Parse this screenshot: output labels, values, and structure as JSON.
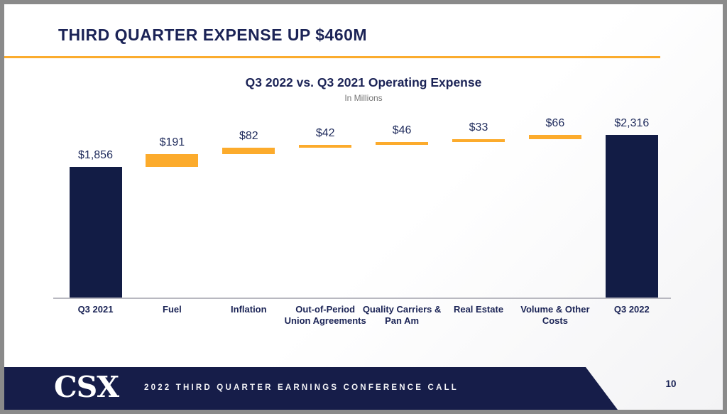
{
  "slide": {
    "title": "THIRD QUARTER EXPENSE UP $460M",
    "page_number": "10"
  },
  "footer": {
    "logo_text": "CSX",
    "text": "2022 THIRD QUARTER EARNINGS CONFERENCE CALL"
  },
  "chart_data": {
    "type": "bar",
    "subtype": "waterfall",
    "title": "Q3 2022 vs. Q3 2021 Operating Expense",
    "subtitle": "In Millions",
    "categories": [
      "Q3 2021",
      "Fuel",
      "Inflation",
      "Out-of-Period Union Agreements",
      "Quality Carriers & Pan Am",
      "Real Estate",
      "Volume & Other Costs",
      "Q3 2022"
    ],
    "values": [
      1856,
      191,
      82,
      42,
      46,
      33,
      66,
      2316
    ],
    "labels": [
      "$1,856",
      "$191",
      "$82",
      "$42",
      "$46",
      "$33",
      "$66",
      "$2,316"
    ],
    "bar_types": [
      "total",
      "delta",
      "delta",
      "delta",
      "delta",
      "delta",
      "delta",
      "total"
    ],
    "colors": {
      "total": "#121c45",
      "delta": "#fcab2c"
    },
    "ylim": [
      0,
      2400
    ],
    "grid": false,
    "legend": "none",
    "axis_labels_position": "below-baseline"
  },
  "colors": {
    "title_navy": "#1b2356",
    "bar_navy": "#121c45",
    "bar_orange": "#fcab2c",
    "divider_orange": "#fbac2e",
    "footer_navy": "#161d49",
    "frame_gray": "#8a8a8a",
    "subtitle_gray": "#757575"
  }
}
